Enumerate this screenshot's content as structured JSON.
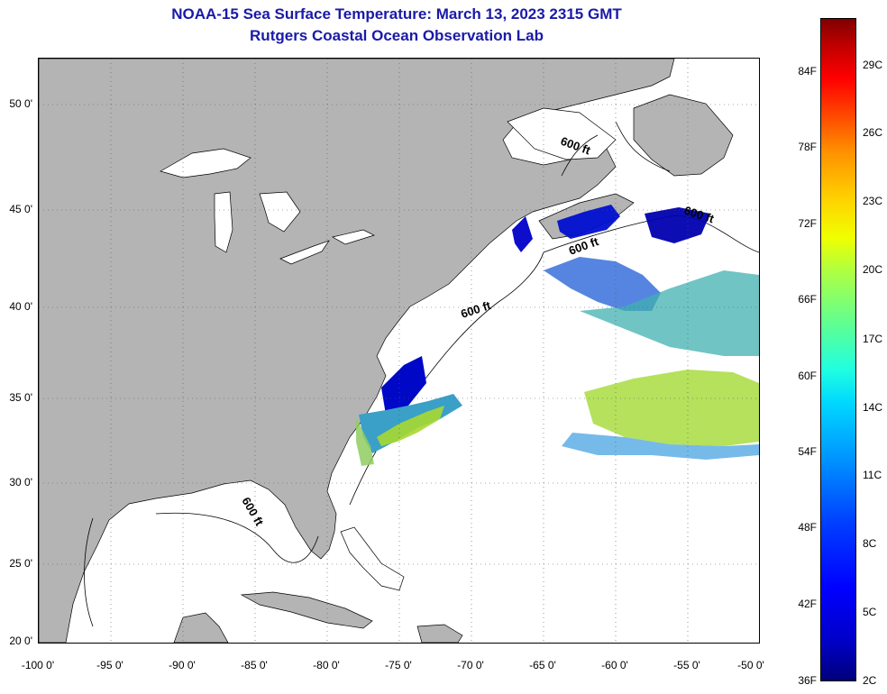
{
  "title": {
    "line1": "NOAA-15 Sea Surface Temperature:  March 13, 2023 2315 GMT",
    "line2": "Rutgers Coastal Ocean Observation Lab"
  },
  "map": {
    "lon_range": [
      -100,
      -50
    ],
    "lat_range": [
      20,
      52.5
    ],
    "grid": "dotted",
    "land_color": "#b4b4b4",
    "ocean_color": "#ffffff",
    "lat_labels": [
      "50 0'",
      "45 0'",
      "40 0'",
      "35 0'",
      "30 0'",
      "25 0'",
      "20 0'"
    ],
    "lon_labels": [
      "-100 0'",
      "-95 0'",
      "-90 0'",
      "-85 0'",
      "-80 0'",
      "-75 0'",
      "-70 0'",
      "-65 0'",
      "-60 0'",
      "-55 0'",
      "-50 0'"
    ],
    "contour_labels": [
      "600 ft",
      "600 ft",
      "600 ft",
      "600 ft",
      "600 ft"
    ]
  },
  "colorbar": {
    "fahrenheit_labels": [
      "84F",
      "78F",
      "72F",
      "66F",
      "60F",
      "54F",
      "48F",
      "42F",
      "36F"
    ],
    "celsius_labels": [
      "29C",
      "26C",
      "23C",
      "20C",
      "17C",
      "14C",
      "11C",
      "8C",
      "5C",
      "2C"
    ]
  }
}
